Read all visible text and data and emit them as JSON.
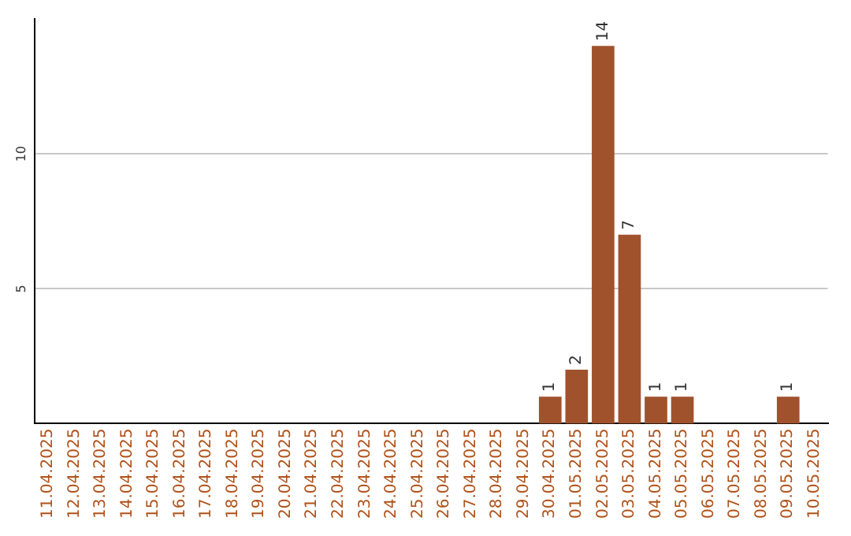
{
  "chart_data": {
    "type": "bar",
    "categories": [
      "11.04.2025",
      "12.04.2025",
      "13.04.2025",
      "14.04.2025",
      "15.04.2025",
      "16.04.2025",
      "17.04.2025",
      "18.04.2025",
      "19.04.2025",
      "20.04.2025",
      "21.04.2025",
      "22.04.2025",
      "23.04.2025",
      "24.04.2025",
      "25.04.2025",
      "26.04.2025",
      "27.04.2025",
      "28.04.2025",
      "29.04.2025",
      "30.04.2025",
      "01.05.2025",
      "02.05.2025",
      "03.05.2025",
      "04.05.2025",
      "05.05.2025",
      "06.05.2025",
      "07.05.2025",
      "08.05.2025",
      "09.05.2025",
      "10.05.2025"
    ],
    "values": [
      0,
      0,
      0,
      0,
      0,
      0,
      0,
      0,
      0,
      0,
      0,
      0,
      0,
      0,
      0,
      0,
      0,
      0,
      0,
      1,
      2,
      14,
      7,
      1,
      1,
      0,
      0,
      0,
      1,
      0
    ],
    "value_labels": [
      null,
      null,
      null,
      null,
      null,
      null,
      null,
      null,
      null,
      null,
      null,
      null,
      null,
      null,
      null,
      null,
      null,
      null,
      null,
      "1",
      "2",
      "14",
      "7",
      "1",
      "1",
      null,
      null,
      null,
      "1",
      null
    ],
    "color": "#a0522d",
    "ylim": [
      0,
      15
    ],
    "yticks": [
      5,
      10
    ],
    "grid": "y",
    "legend": false
  }
}
